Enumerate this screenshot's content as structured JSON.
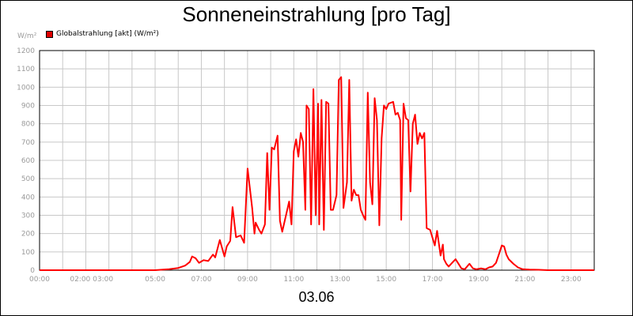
{
  "chart_data": {
    "type": "line",
    "title": "Sonneneinstrahlung [pro Tag]",
    "ylabel": "W/m²",
    "xlabel": "03.06",
    "ylim": [
      0,
      1200
    ],
    "xlim": [
      0,
      24
    ],
    "grid": true,
    "legend_position": "top-left",
    "y_ticks": [
      0,
      100,
      200,
      300,
      400,
      500,
      600,
      700,
      800,
      900,
      1000,
      1100,
      1200
    ],
    "x_ticks": [
      {
        "value": 0,
        "label": "00:00"
      },
      {
        "value": 2.25,
        "label": "02:00 03:00"
      },
      {
        "value": 5,
        "label": "05:00"
      },
      {
        "value": 7,
        "label": "07:00"
      },
      {
        "value": 9,
        "label": "09:00"
      },
      {
        "value": 11,
        "label": "11:00"
      },
      {
        "value": 13,
        "label": "13:00"
      },
      {
        "value": 15,
        "label": "15:00"
      },
      {
        "value": 17,
        "label": "17:00"
      },
      {
        "value": 19,
        "label": "19:00"
      },
      {
        "value": 21,
        "label": "21:00"
      },
      {
        "value": 23,
        "label": "23:00"
      }
    ],
    "series": [
      {
        "name": "Globalstrahlung [akt] (W/m²)",
        "color": "#ff0000",
        "points": [
          [
            0,
            0
          ],
          [
            5.0,
            0
          ],
          [
            5.6,
            5
          ],
          [
            6.0,
            12
          ],
          [
            6.3,
            25
          ],
          [
            6.5,
            45
          ],
          [
            6.6,
            75
          ],
          [
            6.75,
            65
          ],
          [
            6.9,
            40
          ],
          [
            7.1,
            55
          ],
          [
            7.3,
            50
          ],
          [
            7.5,
            85
          ],
          [
            7.6,
            70
          ],
          [
            7.8,
            165
          ],
          [
            8.0,
            75
          ],
          [
            8.1,
            130
          ],
          [
            8.25,
            160
          ],
          [
            8.35,
            345
          ],
          [
            8.5,
            180
          ],
          [
            8.7,
            190
          ],
          [
            8.85,
            150
          ],
          [
            9.0,
            555
          ],
          [
            9.2,
            340
          ],
          [
            9.3,
            200
          ],
          [
            9.35,
            260
          ],
          [
            9.5,
            220
          ],
          [
            9.6,
            200
          ],
          [
            9.75,
            250
          ],
          [
            9.85,
            640
          ],
          [
            9.95,
            330
          ],
          [
            10.05,
            670
          ],
          [
            10.15,
            660
          ],
          [
            10.3,
            735
          ],
          [
            10.4,
            270
          ],
          [
            10.5,
            210
          ],
          [
            10.7,
            320
          ],
          [
            10.8,
            375
          ],
          [
            10.9,
            250
          ],
          [
            11.0,
            650
          ],
          [
            11.1,
            715
          ],
          [
            11.2,
            620
          ],
          [
            11.3,
            750
          ],
          [
            11.4,
            700
          ],
          [
            11.5,
            330
          ],
          [
            11.55,
            900
          ],
          [
            11.65,
            880
          ],
          [
            11.75,
            250
          ],
          [
            11.85,
            990
          ],
          [
            11.95,
            300
          ],
          [
            12.05,
            910
          ],
          [
            12.1,
            250
          ],
          [
            12.2,
            930
          ],
          [
            12.3,
            220
          ],
          [
            12.4,
            920
          ],
          [
            12.5,
            910
          ],
          [
            12.6,
            330
          ],
          [
            12.7,
            330
          ],
          [
            12.85,
            410
          ],
          [
            12.95,
            1040
          ],
          [
            13.05,
            1055
          ],
          [
            13.15,
            340
          ],
          [
            13.3,
            480
          ],
          [
            13.4,
            1040
          ],
          [
            13.5,
            380
          ],
          [
            13.6,
            440
          ],
          [
            13.7,
            410
          ],
          [
            13.8,
            410
          ],
          [
            13.9,
            330
          ],
          [
            14.0,
            300
          ],
          [
            14.1,
            275
          ],
          [
            14.2,
            970
          ],
          [
            14.3,
            480
          ],
          [
            14.4,
            360
          ],
          [
            14.5,
            940
          ],
          [
            14.6,
            820
          ],
          [
            14.7,
            245
          ],
          [
            14.8,
            720
          ],
          [
            14.9,
            900
          ],
          [
            15.0,
            880
          ],
          [
            15.1,
            910
          ],
          [
            15.3,
            920
          ],
          [
            15.4,
            850
          ],
          [
            15.5,
            860
          ],
          [
            15.6,
            820
          ],
          [
            15.65,
            275
          ],
          [
            15.75,
            910
          ],
          [
            15.85,
            830
          ],
          [
            15.95,
            820
          ],
          [
            16.05,
            430
          ],
          [
            16.15,
            800
          ],
          [
            16.25,
            850
          ],
          [
            16.35,
            690
          ],
          [
            16.45,
            750
          ],
          [
            16.55,
            720
          ],
          [
            16.65,
            750
          ],
          [
            16.75,
            230
          ],
          [
            16.9,
            220
          ],
          [
            17.1,
            135
          ],
          [
            17.2,
            215
          ],
          [
            17.35,
            80
          ],
          [
            17.45,
            140
          ],
          [
            17.5,
            60
          ],
          [
            17.6,
            35
          ],
          [
            17.7,
            20
          ],
          [
            17.85,
            40
          ],
          [
            18.0,
            60
          ],
          [
            18.1,
            40
          ],
          [
            18.25,
            10
          ],
          [
            18.4,
            5
          ],
          [
            18.6,
            35
          ],
          [
            18.75,
            10
          ],
          [
            18.9,
            5
          ],
          [
            19.1,
            10
          ],
          [
            19.3,
            5
          ],
          [
            19.45,
            15
          ],
          [
            19.6,
            20
          ],
          [
            19.75,
            40
          ],
          [
            19.9,
            95
          ],
          [
            20.0,
            135
          ],
          [
            20.1,
            130
          ],
          [
            20.2,
            85
          ],
          [
            20.3,
            60
          ],
          [
            20.5,
            35
          ],
          [
            20.7,
            15
          ],
          [
            20.9,
            5
          ],
          [
            21.2,
            3
          ],
          [
            21.6,
            2
          ],
          [
            22.0,
            0
          ],
          [
            24,
            0
          ]
        ]
      }
    ]
  }
}
